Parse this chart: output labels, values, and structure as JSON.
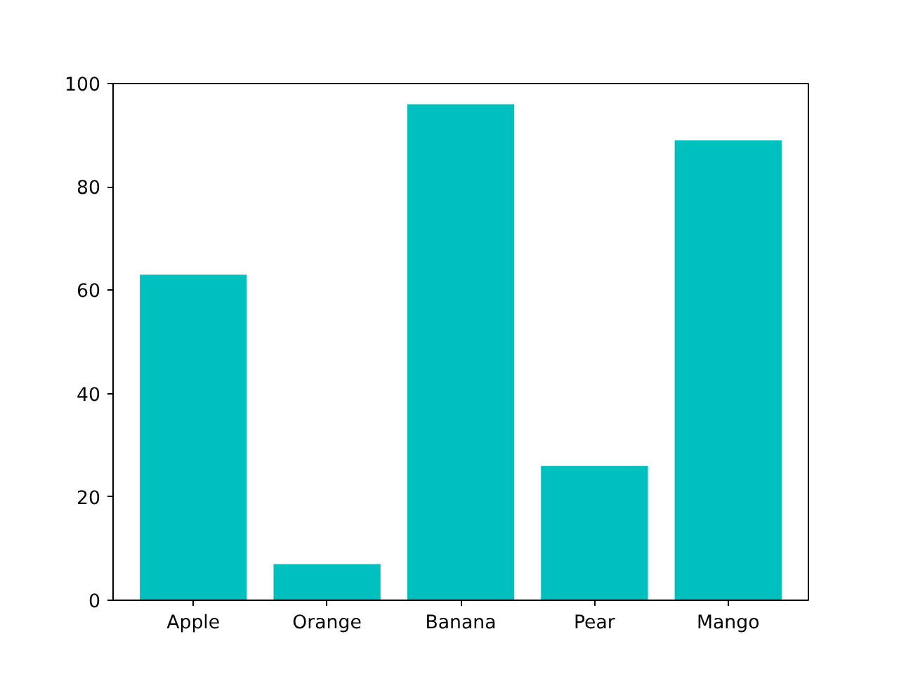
{
  "chart_data": {
    "type": "bar",
    "categories": [
      "Apple",
      "Orange",
      "Banana",
      "Pear",
      "Mango"
    ],
    "values": [
      63,
      7,
      96,
      26,
      89
    ],
    "color": "#00bfbf",
    "ylim": [
      0,
      100
    ],
    "yticks": [
      0,
      20,
      40,
      60,
      80,
      100
    ],
    "grid": false
  }
}
